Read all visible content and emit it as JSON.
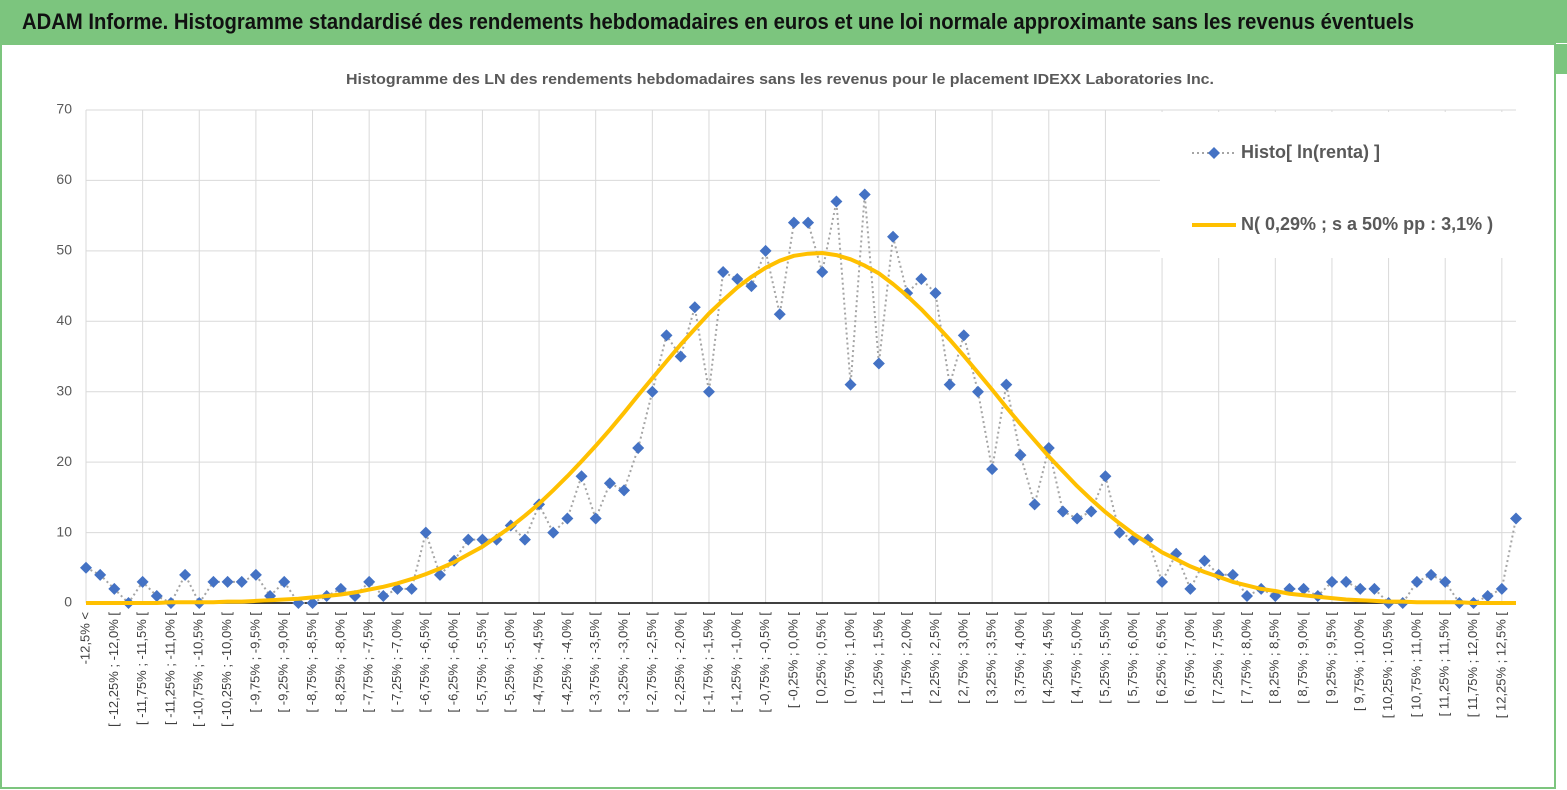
{
  "header": {
    "title": "ADAM Informe. Histogramme standardisé des rendements hebdomadaires en euros et une loi normale approximante sans les revenus éventuels"
  },
  "chart_data": {
    "type": "line",
    "title": "Histogramme des LN des rendements hebdomadaires sans les revenus pour le placement IDEXX Laboratories Inc.",
    "categories": [
      "-12,5% <",
      null,
      "[ -12,25% ; -12,0% [",
      null,
      "[ -11,75% ; -11,5% [",
      null,
      "[ -11,25% ; -11,0% [",
      null,
      "[ -10,75% ; -10,5% [",
      null,
      "[ -10,25% ; -10,0% [",
      null,
      "[ -9,75% ; -9,5% [",
      null,
      "[ -9,25% ; -9,0% [",
      null,
      "[ -8,75% ; -8,5% [",
      null,
      "[ -8,25% ; -8,0% [",
      null,
      "[ -7,75% ; -7,5% [",
      null,
      "[ -7,25% ; -7,0% [",
      null,
      "[ -6,75% ; -6,5% [",
      null,
      "[ -6,25% ; -6,0% [",
      null,
      "[ -5,75% ; -5,5% [",
      null,
      "[ -5,25% ; -5,0% [",
      null,
      "[ -4,75% ; -4,5% [",
      null,
      "[ -4,25% ; -4,0% [",
      null,
      "[ -3,75% ; -3,5% [",
      null,
      "[ -3,25% ; -3,0% [",
      null,
      "[ -2,75% ; -2,5% [",
      null,
      "[ -2,25% ; -2,0% [",
      null,
      "[ -1,75% ; -1,5% [",
      null,
      "[ -1,25% ; -1,0% [",
      null,
      "[ -0,75% ; -0,5% [",
      null,
      "[ -0,25% ; 0,0% [",
      null,
      "[ 0,25% ; 0,5% [",
      null,
      "[ 0,75% ; 1,0% [",
      null,
      "[ 1,25% ; 1,5% [",
      null,
      "[ 1,75% ; 2,0% [",
      null,
      "[ 2,25% ; 2,5% [",
      null,
      "[ 2,75% ; 3,0% [",
      null,
      "[ 3,25% ; 3,5% [",
      null,
      "[ 3,75% ; 4,0% [",
      null,
      "[ 4,25% ; 4,5% [",
      null,
      "[ 4,75% ; 5,0% [",
      null,
      "[ 5,25% ; 5,5% [",
      null,
      "[ 5,75% ; 6,0% [",
      null,
      "[ 6,25% ; 6,5% [",
      null,
      "[ 6,75% ; 7,0% [",
      null,
      "[ 7,25% ; 7,5% [",
      null,
      "[ 7,75% ; 8,0% [",
      null,
      "[ 8,25% ; 8,5% [",
      null,
      "[ 8,75% ; 9,0% [",
      null,
      "[ 9,25% ; 9,5% [",
      null,
      "[ 9,75% ; 10,0% [",
      null,
      "[ 10,25% ; 10,5% [",
      null,
      "[ 10,75% ; 11,0% [",
      null,
      "[ 11,25% ; 11,5% [",
      null,
      "[ 11,75% ; 12,0% [",
      null,
      "[ 12,25% ; 12,5% [",
      null
    ],
    "series": [
      {
        "name": "Histo[ ln(renta) ]",
        "color": "#4472c4",
        "line_color": "#a5a5a5",
        "line_style": "dotted",
        "marker": "diamond",
        "values": [
          5,
          4,
          2,
          0,
          3,
          1,
          0,
          4,
          0,
          3,
          3,
          3,
          4,
          1,
          3,
          0,
          0,
          1,
          2,
          1,
          3,
          1,
          2,
          2,
          10,
          4,
          6,
          9,
          9,
          9,
          11,
          9,
          14,
          10,
          12,
          18,
          12,
          17,
          16,
          22,
          30,
          38,
          35,
          42,
          30,
          47,
          46,
          45,
          50,
          41,
          54,
          54,
          47,
          57,
          31,
          58,
          34,
          52,
          44,
          46,
          44,
          31,
          38,
          30,
          19,
          31,
          21,
          14,
          22,
          13,
          12,
          13,
          18,
          10,
          9,
          9,
          3,
          7,
          2,
          6,
          4,
          4,
          1,
          2,
          1,
          2,
          2,
          1,
          3,
          3,
          2,
          2,
          0,
          0,
          3,
          4,
          3,
          0,
          0,
          1,
          2,
          12
        ]
      },
      {
        "name": "N( 0,29% ; s a 50% pp : 3,1% )",
        "color": "#ffc000",
        "line_style": "solid",
        "marker": "none",
        "values": [
          0,
          0,
          0,
          0,
          0,
          0,
          0.1,
          0.1,
          0.1,
          0.1,
          0.2,
          0.2,
          0.3,
          0.4,
          0.5,
          0.6,
          0.8,
          1.0,
          1.2,
          1.5,
          1.9,
          2.3,
          2.8,
          3.4,
          4.1,
          4.9,
          5.8,
          6.9,
          8.0,
          9.4,
          10.8,
          12.4,
          14.1,
          16.0,
          18.0,
          20.1,
          22.3,
          24.6,
          27.0,
          29.5,
          31.9,
          34.3,
          36.7,
          38.9,
          41.1,
          43.0,
          44.8,
          46.3,
          47.6,
          48.6,
          49.3,
          49.6,
          49.7,
          49.4,
          48.8,
          47.9,
          46.8,
          45.3,
          43.6,
          41.7,
          39.6,
          37.4,
          35.1,
          32.7,
          30.3,
          27.8,
          25.4,
          23.1,
          20.8,
          18.7,
          16.6,
          14.7,
          12.9,
          11.3,
          9.8,
          8.5,
          7.2,
          6.2,
          5.2,
          4.4,
          3.7,
          3.0,
          2.5,
          2.0,
          1.7,
          1.3,
          1.1,
          0.9,
          0.7,
          0.5,
          0.4,
          0.3,
          0.2,
          0.2,
          0.1,
          0.1,
          0.1,
          0.1,
          0,
          0,
          0,
          0
        ]
      }
    ],
    "ylim": [
      0,
      70
    ],
    "yticks": [
      0,
      10,
      20,
      30,
      40,
      50,
      60,
      70
    ],
    "grid": true,
    "legend": "top-right"
  }
}
